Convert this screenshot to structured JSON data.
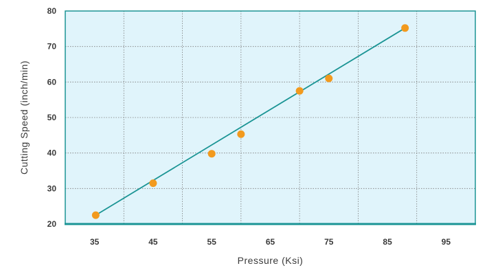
{
  "chart_data": {
    "type": "scatter",
    "title": "",
    "xlabel": "Pressure (Ksi)",
    "ylabel": "Cutting Speed (inch/min)",
    "xlim": [
      30,
      100
    ],
    "ylim": [
      20,
      80
    ],
    "x_ticks": [
      35,
      45,
      55,
      65,
      75,
      85,
      95
    ],
    "y_ticks": [
      20,
      30,
      40,
      50,
      60,
      70,
      80
    ],
    "grid": true,
    "series": [
      {
        "points": [
          {
            "x": 35.2,
            "y": 22.5
          },
          {
            "x": 45.0,
            "y": 31.5
          },
          {
            "x": 55.0,
            "y": 39.8
          },
          {
            "x": 60.0,
            "y": 45.3
          },
          {
            "x": 70.0,
            "y": 57.5
          },
          {
            "x": 75.0,
            "y": 61.0
          },
          {
            "x": 88.0,
            "y": 75.2
          }
        ],
        "color": "#f29a1e"
      }
    ],
    "trendline": {
      "from": {
        "x": 35.2,
        "y": 22.5
      },
      "to": {
        "x": 88.0,
        "y": 75.2
      },
      "color": "#1a9494"
    },
    "colors": {
      "plot_background": "#e0f4fb",
      "frame": "#1a9494",
      "grid": "#7a7a7a"
    }
  }
}
